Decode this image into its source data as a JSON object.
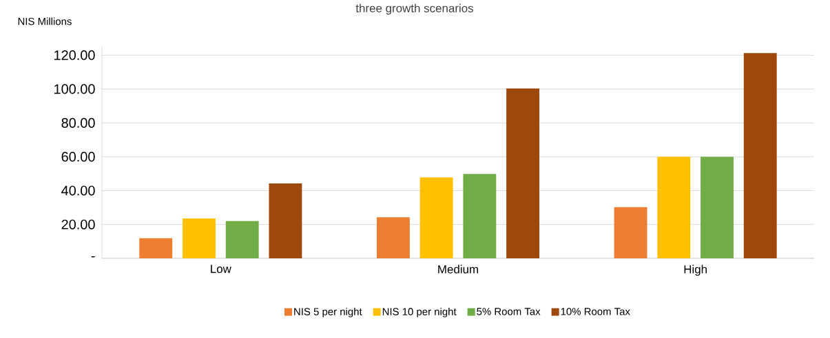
{
  "chart_data": {
    "type": "bar",
    "title": "three growth scenarios",
    "ylabel": "NIS Millions",
    "categories": [
      "Low",
      "Medium",
      "High"
    ],
    "series": [
      {
        "name": "NIS 5 per night",
        "color": "#ed7d31",
        "values": [
          11.9,
          24.2,
          30.2
        ]
      },
      {
        "name": "NIS 10 per night",
        "color": "#ffc000",
        "values": [
          23.5,
          47.8,
          60
        ]
      },
      {
        "name": "5% Room Tax",
        "color": "#70ad47",
        "values": [
          22,
          49.8,
          60
        ]
      },
      {
        "name": "10% Room Tax",
        "color": "#9e480e",
        "values": [
          44.2,
          100.3,
          121.2
        ]
      }
    ],
    "ylim": [
      0,
      125
    ],
    "yticks": [
      {
        "value": 0,
        "label": "-"
      },
      {
        "value": 20,
        "label": "20.00"
      },
      {
        "value": 40,
        "label": "40.00"
      },
      {
        "value": 60,
        "label": "60.00"
      },
      {
        "value": 80,
        "label": "80.00"
      },
      {
        "value": 100,
        "label": "100.00"
      },
      {
        "value": 120,
        "label": "120.00"
      }
    ],
    "grid": "y",
    "legend": "bottom"
  }
}
